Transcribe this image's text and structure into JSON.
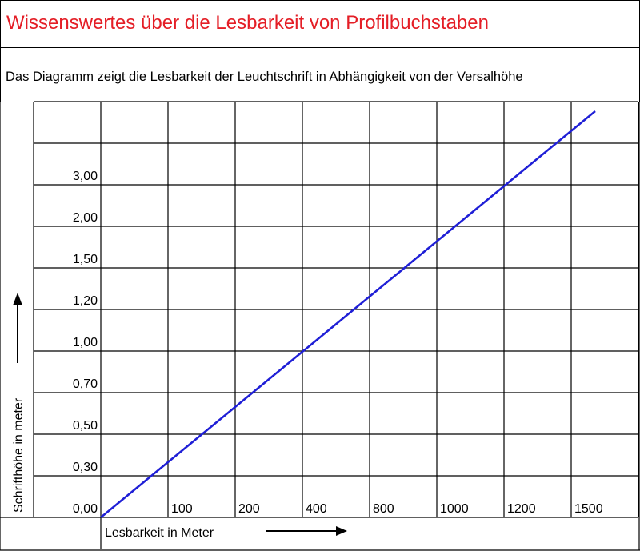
{
  "title": "Wissenswertes über die Lesbarkeit von Profilbuchstaben",
  "subtitle": "Das Diagramm zeigt die Lesbarkeit der Leuchtschrift in Abhängigkeit von der Versalhöhe",
  "colors": {
    "title": "#e41e26",
    "line": "#1f1fd6",
    "grid": "#000000"
  },
  "chart_data": {
    "type": "line",
    "xlabel": "Lesbarkeit in Meter",
    "ylabel": "Schrifthöhe in meter",
    "x_tick_labels": [
      "100",
      "200",
      "400",
      "800",
      "1000",
      "1200",
      "1500"
    ],
    "y_tick_labels": [
      "0,00",
      "0,30",
      "0,50",
      "0,70",
      "1,00",
      "1,20",
      "1,50",
      "2,00",
      "3,00"
    ],
    "grid": true,
    "series": [
      {
        "x": [
          0,
          1500
        ],
        "y": [
          0.0,
          3.0
        ]
      }
    ]
  }
}
